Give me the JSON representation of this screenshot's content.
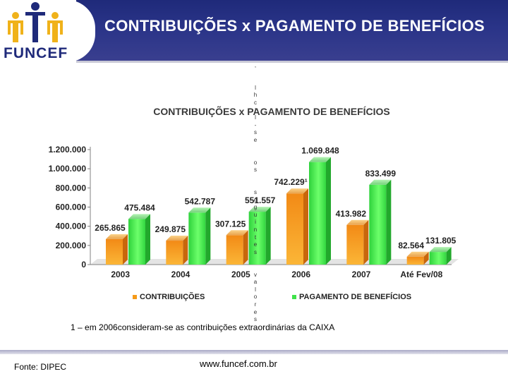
{
  "header": {
    "title": "CONTRIBUIÇÕES x PAGAMENTO DE BENEFÍCIOS",
    "logo_text": "FUNCEF",
    "brand_color": "#1f2a7a",
    "logo_color": "#f0b21a"
  },
  "stray_text": ",   l h c l l - s e   o s   s e g u i n t e s   v a l o r e s :",
  "chart_data": {
    "type": "bar",
    "title": "CONTRIBUIÇÕES x PAGAMENTO DE BENEFÍCIOS",
    "categories": [
      "2003",
      "2004",
      "2005",
      "2006",
      "2007",
      "Até Fev/08"
    ],
    "series": [
      {
        "name": "CONTRIBUIÇÕES",
        "color": "#f59a18",
        "values": [
          265865,
          249875,
          307125,
          742229,
          413982,
          82564
        ],
        "labels": [
          "265.865",
          "249.875",
          "307.125",
          "742.229¹",
          "413.982",
          "82.564"
        ]
      },
      {
        "name": "PAGAMENTO DE BENEFÍCIOS",
        "color": "#3fe24a",
        "values": [
          475484,
          542787,
          551557,
          1069848,
          833499,
          131805
        ],
        "labels": [
          "475.484",
          "542.787",
          "551.557",
          "1.069.848",
          "833.499",
          "131.805"
        ]
      }
    ],
    "y_ticks": [
      0,
      200000,
      400000,
      600000,
      800000,
      1000000,
      1200000
    ],
    "y_tick_labels": [
      "0",
      "200.000",
      "400.000",
      "600.000",
      "800.000",
      "1.000.000",
      "1.200.000"
    ],
    "ylim": [
      0,
      1200000
    ],
    "legend_position": "bottom",
    "grid": false
  },
  "footnote": "1 – em 2006consideram-se as contribuições extraordinárias da CAIXA",
  "footer": {
    "source": "Fonte: DIPEC",
    "url": "www.funcef.com.br"
  }
}
